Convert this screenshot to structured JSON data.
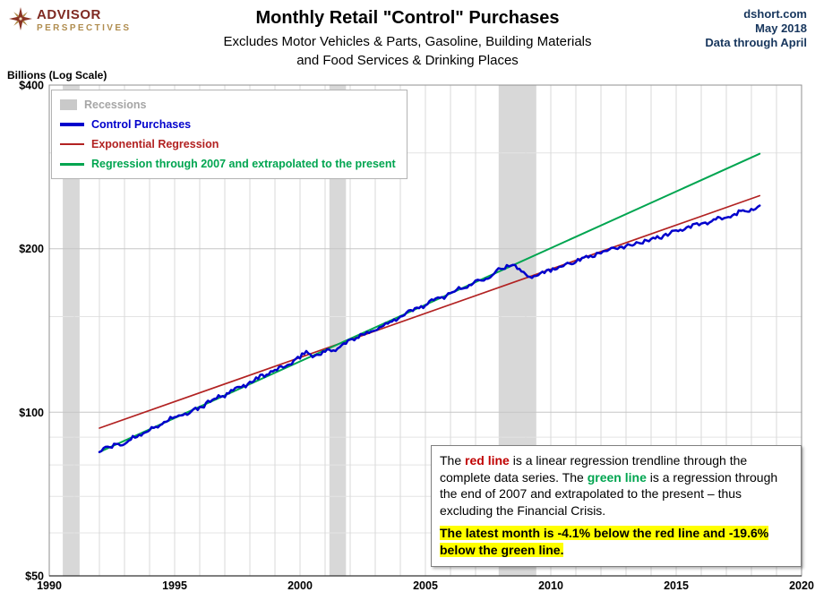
{
  "header": {
    "logo": {
      "line1": "ADVISOR",
      "line2": "PERSPECTIVES"
    },
    "title": "Monthly Retail \"Control\" Purchases",
    "subtitle": [
      "Excludes Motor Vehicles & Parts, Gasoline, Building Materials",
      "and Food Services & Drinking Places"
    ],
    "source": {
      "line1": "dshort.com",
      "line2": "May 2018",
      "line3": "Data through April"
    }
  },
  "axis_note": "Billions (Log Scale)",
  "legend": {
    "items": [
      {
        "id": "recessions",
        "label": "Recessions",
        "swatch": "band",
        "swatch_height": 12,
        "color": "#c9c9c9",
        "label_color": "#a6a6a6"
      },
      {
        "id": "control-purchases",
        "label": "Control Purchases",
        "swatch": "line",
        "swatch_height": 4,
        "color": "#0000cc",
        "label_color": "#0000cc"
      },
      {
        "id": "exponential-regression",
        "label": "Exponential Regression",
        "swatch": "line",
        "swatch_height": 2,
        "color": "#b22222",
        "label_color": "#b22222"
      },
      {
        "id": "regression-through-2007",
        "label": "Regression through 2007 and extrapolated to the present",
        "swatch": "line",
        "swatch_height": 3,
        "color": "#00a550",
        "label_color": "#00a550"
      }
    ]
  },
  "annotation": {
    "body": [
      {
        "t": "The ",
        "s": "n"
      },
      {
        "t": "red line",
        "s": "red"
      },
      {
        "t": " is a linear regression trendline through the complete data series. The ",
        "s": "n"
      },
      {
        "t": "green line",
        "s": "green"
      },
      {
        "t": " is a regression through the end of 2007 and extrapolated to the present – thus excluding the Financial Crisis.",
        "s": "n"
      }
    ],
    "highlight": "The latest month is -4.1%  below the red line and -19.6% below the green line.",
    "highlight_color": "#ffff00"
  },
  "chart_data": {
    "type": "line",
    "title": "Monthly Retail \"Control\" Purchases",
    "ylabel": "Billions (Log Scale)",
    "y_scale": "log",
    "x_range": [
      1990,
      2020
    ],
    "y_range": [
      50,
      400
    ],
    "x_ticks": [
      1990,
      1995,
      2000,
      2005,
      2010,
      2015,
      2020
    ],
    "y_ticks": [
      {
        "value": 400,
        "label": "$400"
      },
      {
        "value": 200,
        "label": "$200"
      },
      {
        "value": 100,
        "label": "$100"
      },
      {
        "value": 50,
        "label": "$50"
      }
    ],
    "y_minor_gridlines": [
      60,
      70,
      80,
      90,
      150,
      300
    ],
    "recession_color": "#d8d8d8",
    "recessions": [
      [
        1990.54,
        1991.21
      ],
      [
        2001.17,
        2001.83
      ],
      [
        2007.92,
        2009.42
      ]
    ],
    "series": [
      {
        "id": "exponential-regression",
        "name": "Exponential Regression",
        "color": "#b22222",
        "width": 1.7,
        "points": [
          [
            1992.0,
            93.5
          ],
          [
            2018.33,
            250.3
          ]
        ]
      },
      {
        "id": "regression-through-2007",
        "name": "Regression through 2007 and extrapolated to the present",
        "color": "#00a550",
        "width": 2,
        "points": [
          [
            1992.0,
            84.5
          ],
          [
            2018.33,
            299.0
          ]
        ]
      },
      {
        "id": "control-purchases",
        "name": "Control Purchases",
        "color": "#0000cc",
        "width": 2.5,
        "noise": 0.0035,
        "points": [
          [
            1992.0,
            84.5
          ],
          [
            1992.33,
            86
          ],
          [
            1992.67,
            87.5
          ],
          [
            1993.0,
            87
          ],
          [
            1993.33,
            90
          ],
          [
            1993.67,
            91.5
          ],
          [
            1994.0,
            92.5
          ],
          [
            1994.5,
            95.5
          ],
          [
            1995.0,
            98
          ],
          [
            1995.42,
            99
          ],
          [
            1995.75,
            100.5
          ],
          [
            1996.0,
            102
          ],
          [
            1996.5,
            105.5
          ],
          [
            1997.0,
            107.5
          ],
          [
            1997.5,
            110.5
          ],
          [
            1998.0,
            113.5
          ],
          [
            1998.5,
            116.5
          ],
          [
            1999.0,
            119.5
          ],
          [
            1999.5,
            122
          ],
          [
            2000.0,
            126
          ],
          [
            2000.25,
            129.5
          ],
          [
            2000.5,
            127
          ],
          [
            2000.9,
            128.5
          ],
          [
            2001.3,
            130.5
          ],
          [
            2001.7,
            132.5
          ],
          [
            2002.0,
            135.5
          ],
          [
            2002.5,
            139
          ],
          [
            2003.0,
            142
          ],
          [
            2003.5,
            146
          ],
          [
            2004.0,
            150
          ],
          [
            2004.5,
            154
          ],
          [
            2005.0,
            158
          ],
          [
            2005.5,
            161.5
          ],
          [
            2006.0,
            166
          ],
          [
            2006.5,
            169.5
          ],
          [
            2007.0,
            173.5
          ],
          [
            2007.5,
            178
          ],
          [
            2007.92,
            182.5
          ],
          [
            2008.3,
            186.5
          ],
          [
            2008.6,
            185.5
          ],
          [
            2008.8,
            181.5
          ],
          [
            2009.0,
            179.5
          ],
          [
            2009.3,
            178.5
          ],
          [
            2009.6,
            180
          ],
          [
            2010.0,
            183
          ],
          [
            2010.5,
            186.5
          ],
          [
            2011.0,
            190
          ],
          [
            2011.5,
            193.5
          ],
          [
            2012.0,
            197
          ],
          [
            2012.5,
            199.5
          ],
          [
            2013.0,
            202
          ],
          [
            2013.5,
            205
          ],
          [
            2014.0,
            208
          ],
          [
            2014.5,
            211.5
          ],
          [
            2015.0,
            215.5
          ],
          [
            2015.5,
            219
          ],
          [
            2016.0,
            222
          ],
          [
            2016.5,
            225
          ],
          [
            2017.0,
            228.5
          ],
          [
            2017.5,
            232.5
          ],
          [
            2018.0,
            237
          ],
          [
            2018.33,
            240
          ]
        ]
      }
    ]
  }
}
